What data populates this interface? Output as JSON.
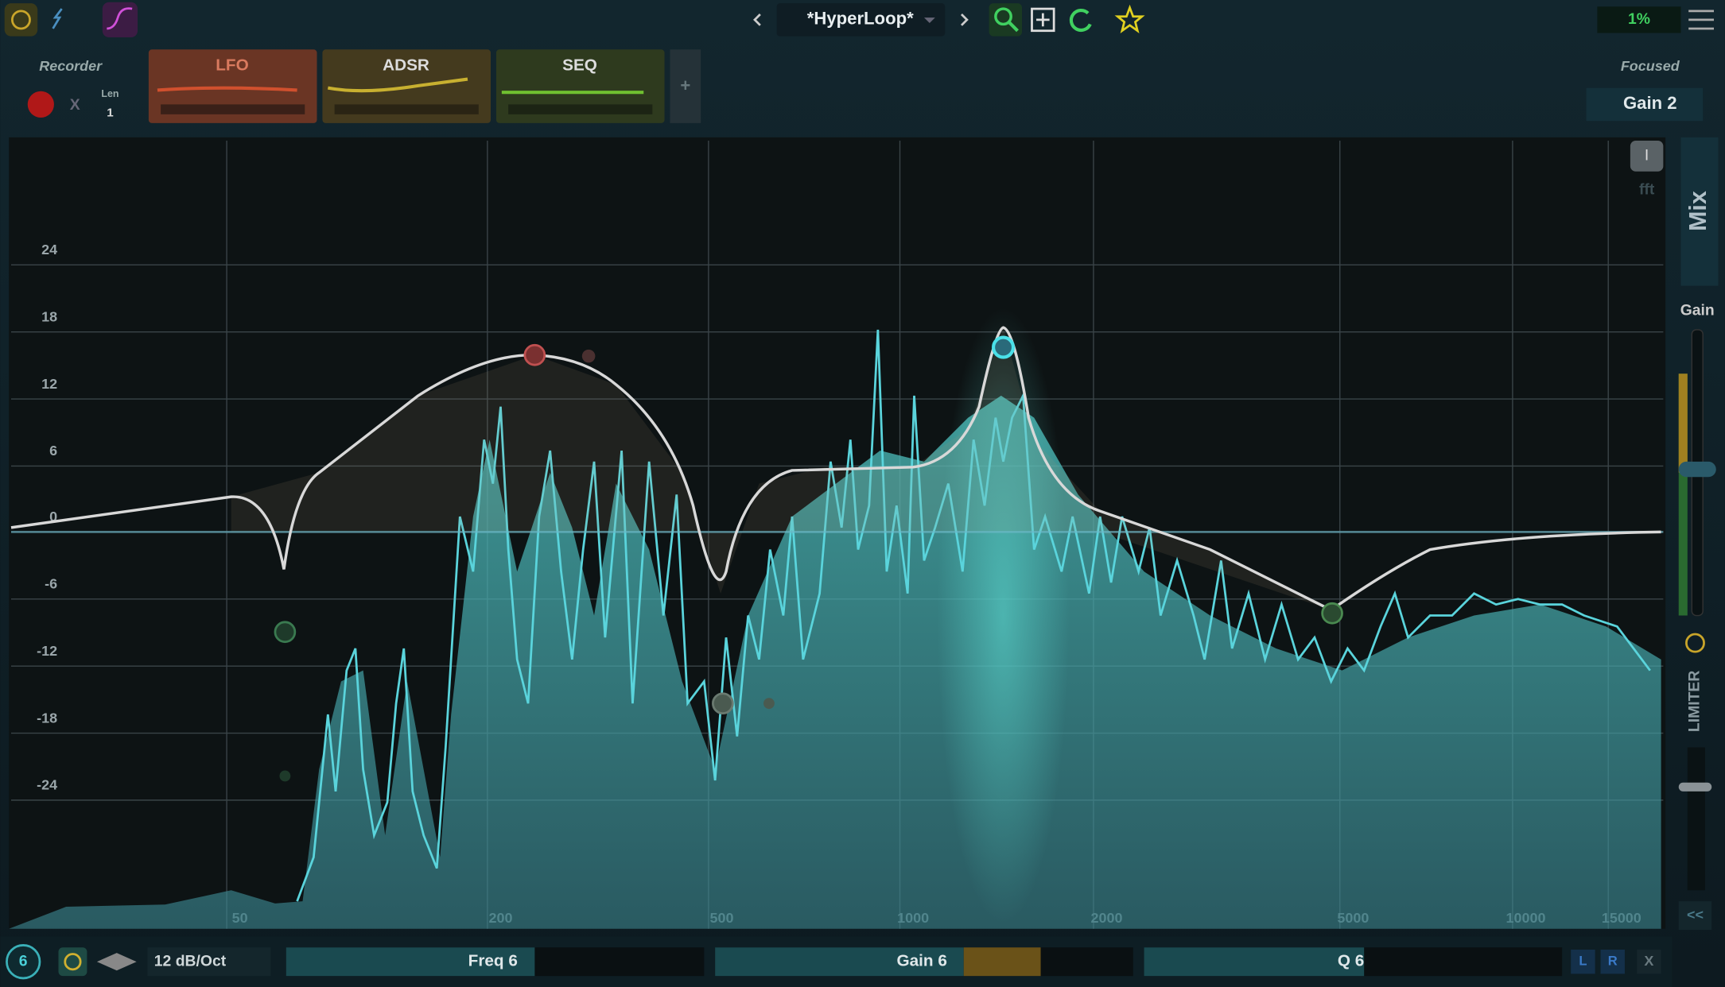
{
  "top_bar": {
    "preset": "*HyperLoop*",
    "cpu": "1%"
  },
  "recorder": {
    "label": "Recorder",
    "clear": "X",
    "len_label": "Len",
    "len_value": 1
  },
  "modulators": [
    "LFO",
    "ADSR",
    "SEQ"
  ],
  "add_modulator": "+",
  "focused": {
    "label": "Focused",
    "value": "Gain 2"
  },
  "graph": {
    "db_labels": [
      24,
      18,
      12,
      6,
      0,
      -6,
      -12,
      -18,
      -24
    ],
    "freq_labels": [
      50,
      200,
      500,
      1000,
      2000,
      5000,
      10000,
      15000
    ],
    "info_button": "I",
    "fft": "fft"
  },
  "side_panel": {
    "mix": "Mix",
    "gain": "Gain",
    "limiter": "LIMITER",
    "collapse": "<<"
  },
  "band_bar": {
    "band": 6,
    "slope": "12 dB/Oct",
    "freq": "Freq 6",
    "gain": "Gain 6",
    "q": "Q 6",
    "left": "L",
    "right": "R",
    "close": "X"
  }
}
